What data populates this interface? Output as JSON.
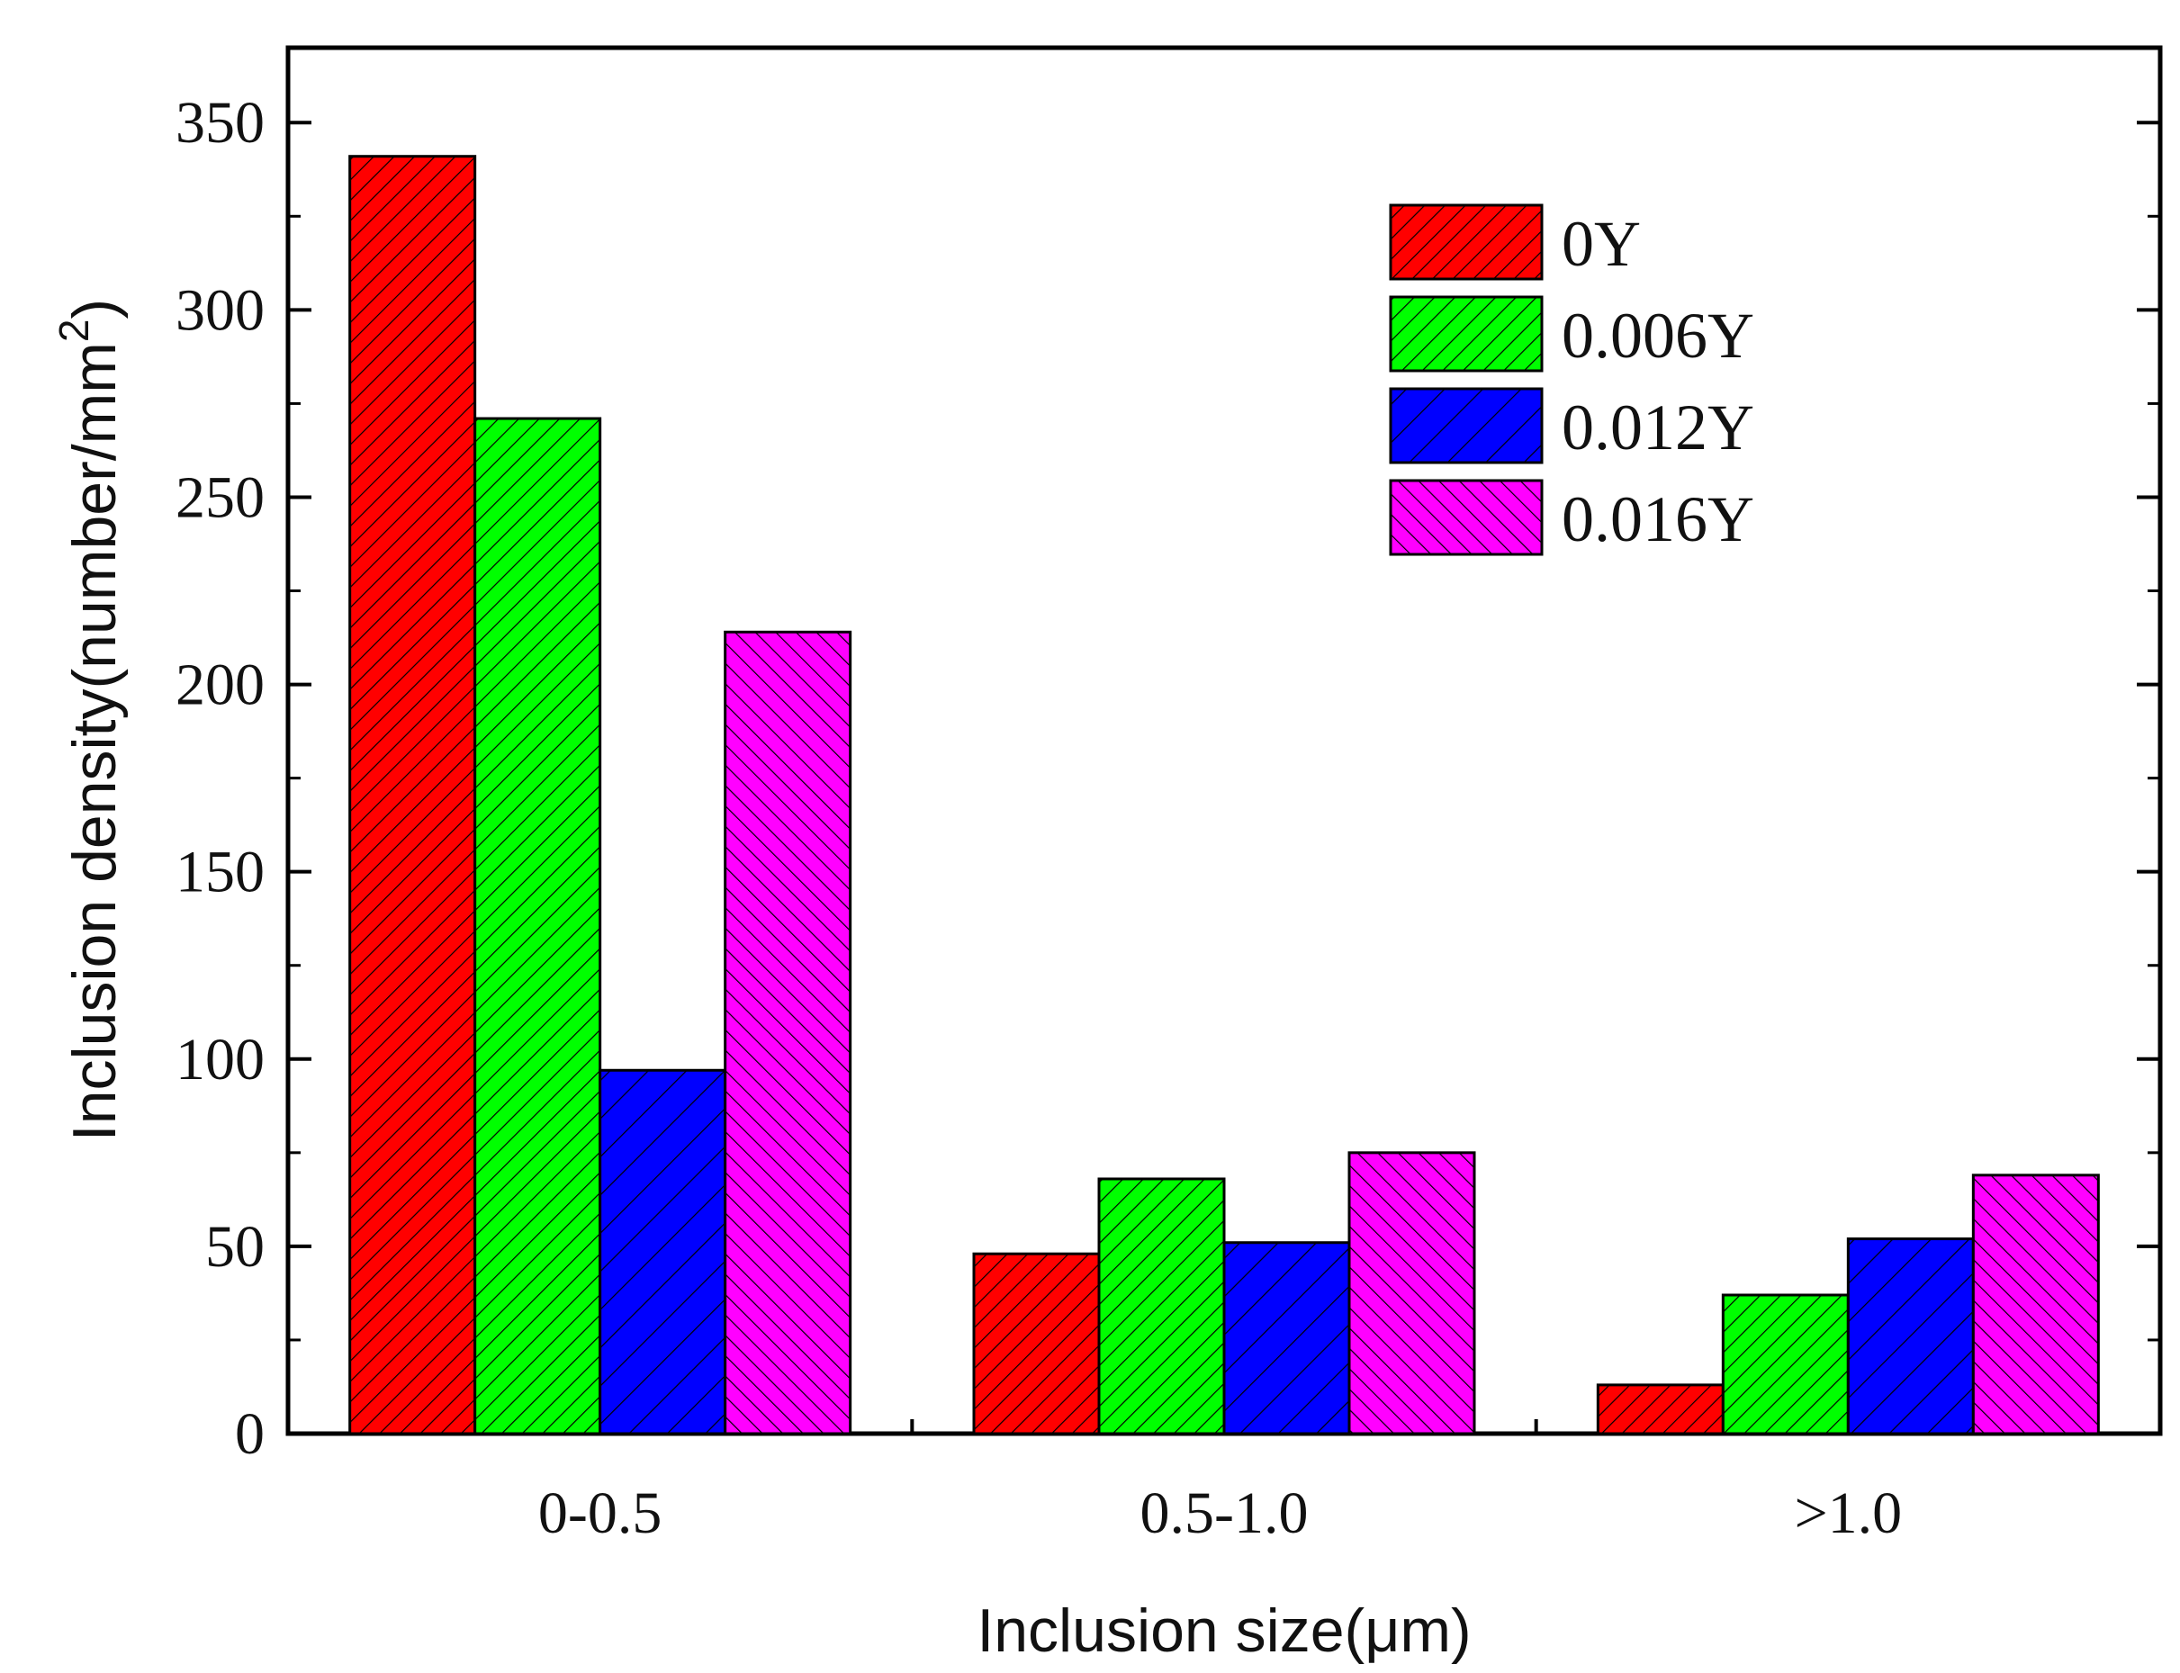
{
  "chart_data": {
    "type": "bar",
    "xlabel": "Inclusion size(μm)",
    "ylabel": "Inclusion density(number/mm",
    "ylabel_superscript": "2",
    "ylabel_close": ")",
    "ylim": [
      0,
      370
    ],
    "yticks": [
      0,
      50,
      100,
      150,
      200,
      250,
      300,
      350
    ],
    "ytick_labels": [
      "0",
      "50",
      "100",
      "150",
      "200",
      "250",
      "300",
      "350"
    ],
    "minor_ytick_step": 25,
    "categories": [
      "0-0.5",
      "0.5-1.0",
      ">1.0"
    ],
    "series": [
      {
        "name": "0Y",
        "color": "#ff0000",
        "hatch": "forward",
        "values": [
          341,
          48,
          13
        ]
      },
      {
        "name": "0.006Y",
        "color": "#00ff00",
        "hatch": "forward",
        "values": [
          271,
          68,
          37
        ]
      },
      {
        "name": "0.012Y",
        "color": "#0000ff",
        "hatch": "forward-wide",
        "values": [
          97,
          51,
          52
        ]
      },
      {
        "name": "0.016Y",
        "color": "#ff00ff",
        "hatch": "back",
        "values": [
          214,
          75,
          69
        ]
      }
    ],
    "legend_position": "top-right",
    "grid": false
  }
}
